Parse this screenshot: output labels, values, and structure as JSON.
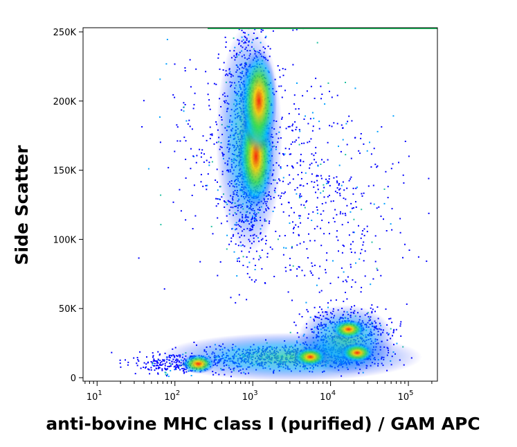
{
  "chart_data": {
    "type": "density",
    "xlabel": "anti-bovine MHC class I (purified) / GAM APC",
    "ylabel": "Side Scatter",
    "x": [
      1100,
      1200,
      5500,
      22000,
      17000,
      200
    ],
    "y": [
      160000,
      200000,
      15000,
      18000,
      35000,
      10000
    ],
    "xscale": "log",
    "xlim": [
      6.6,
      236000
    ],
    "ylim": [
      -2500,
      253000
    ],
    "xticks": [
      {
        "value": 10,
        "label": "10",
        "sup": "1"
      },
      {
        "value": 100,
        "label": "10",
        "sup": "2"
      },
      {
        "value": 1000,
        "label": "10",
        "sup": "3"
      },
      {
        "value": 10000,
        "label": "10",
        "sup": "4"
      },
      {
        "value": 100000,
        "label": "10",
        "sup": "5"
      }
    ],
    "yticks": [
      0,
      {
        "value": 50000,
        "label": "50K"
      },
      {
        "value": 100000,
        "label": "100K"
      },
      {
        "value": 150000,
        "label": "150K"
      },
      {
        "value": 200000,
        "label": "200K"
      },
      {
        "value": 250000,
        "label": "250K"
      }
    ]
  }
}
